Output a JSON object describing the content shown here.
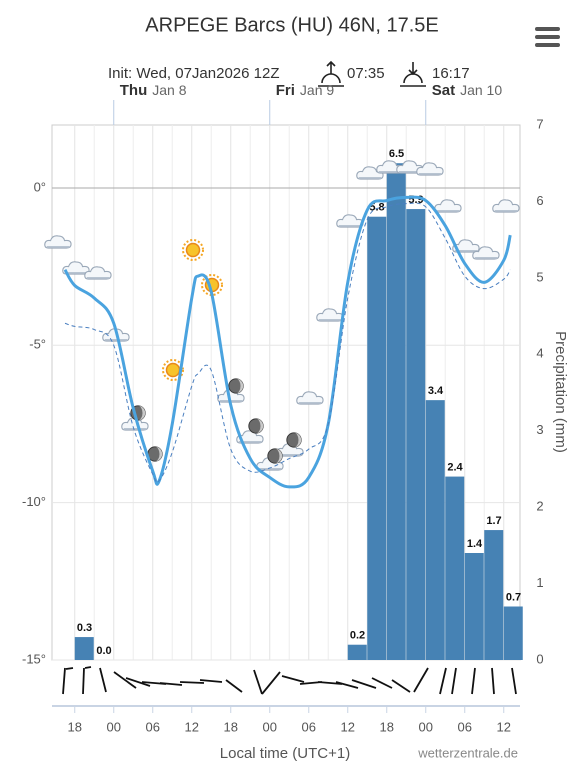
{
  "chart_data": {
    "type": "line",
    "title": "ARPEGE Barcs (HU) 46N, 17.5E",
    "init": "Init: Wed, 07Jan2026 12Z",
    "sunrise": "07:35",
    "sunset": "16:17",
    "days": [
      {
        "day": "Thu",
        "date": "Jan 8",
        "x": 0
      },
      {
        "day": "Fri",
        "date": "Jan 9",
        "x": 24
      },
      {
        "day": "Sat",
        "date": "Jan 10",
        "x": 48
      }
    ],
    "x_label": "Local time (UTC+1)",
    "y2_label": "Precipitation (mm)",
    "credit": "wetterzentrale.de",
    "xlim": [
      -9.5,
      62.5
    ],
    "xticks": [
      {
        "value": -6,
        "label": "18"
      },
      {
        "value": 0,
        "label": "00"
      },
      {
        "value": 6,
        "label": "06"
      },
      {
        "value": 12,
        "label": "12"
      },
      {
        "value": 18,
        "label": "18"
      },
      {
        "value": 24,
        "label": "00"
      },
      {
        "value": 30,
        "label": "06"
      },
      {
        "value": 36,
        "label": "12"
      },
      {
        "value": 42,
        "label": "18"
      },
      {
        "value": 48,
        "label": "00"
      },
      {
        "value": 54,
        "label": "06"
      },
      {
        "value": 60,
        "label": "12"
      }
    ],
    "ylim": [
      -15,
      2
    ],
    "yticks": [
      {
        "value": 0,
        "label": "0°"
      },
      {
        "value": -5,
        "label": "-5°"
      },
      {
        "value": -10,
        "label": "-10°"
      },
      {
        "value": -15,
        "label": "-15°"
      }
    ],
    "y2lim": [
      0,
      7
    ],
    "y2ticks": [
      0,
      1,
      2,
      3,
      4,
      5,
      6,
      7
    ],
    "grid": true,
    "series": [
      {
        "color": "#4aa3df",
        "dashed": false,
        "x": [
          -7.5,
          -6,
          -3,
          0,
          3,
          6,
          7,
          9,
          12,
          13,
          15,
          18,
          21,
          24,
          27,
          30,
          33,
          36,
          39,
          42,
          45,
          48,
          51,
          54,
          57,
          60,
          61
        ],
        "values": [
          -2.6,
          -3.1,
          -3.5,
          -4.3,
          -7.0,
          -9.0,
          -9.3,
          -7.5,
          -3.5,
          -2.8,
          -3.3,
          -6.9,
          -8.6,
          -9.2,
          -9.5,
          -9.2,
          -7.5,
          -3.0,
          -0.7,
          -0.4,
          -0.3,
          -0.4,
          -1.2,
          -2.4,
          -3.0,
          -2.3,
          -1.5
        ]
      },
      {
        "color": "#4a7fc0",
        "dashed": true,
        "x": [
          -7.5,
          -6,
          -3,
          0,
          3,
          6,
          7,
          9,
          12,
          13,
          15,
          18,
          21,
          24,
          27,
          30,
          33,
          36,
          39,
          42,
          45,
          48,
          51,
          54,
          57,
          60,
          61
        ],
        "values": [
          -4.3,
          -4.4,
          -4.5,
          -5.0,
          -7.6,
          -9.1,
          -9.3,
          -8.4,
          -6.3,
          -5.9,
          -5.8,
          -8.3,
          -9.0,
          -8.9,
          -8.6,
          -8.3,
          -7.5,
          -3.5,
          -1.0,
          -0.6,
          -0.5,
          -0.6,
          -1.6,
          -2.8,
          -3.2,
          -2.9,
          -2.6
        ]
      }
    ],
    "precipitation": {
      "color": "#4682b4",
      "axis": "y2",
      "x": [
        -6,
        -3,
        36,
        39,
        42,
        45,
        48,
        51,
        54,
        57,
        60
      ],
      "values": [
        0.3,
        0.0,
        0.2,
        5.8,
        6.5,
        5.9,
        3.4,
        2.4,
        1.4,
        1.7,
        0.7
      ],
      "value_labels": [
        "0.3",
        "0.0",
        "0.2",
        "5.8",
        "6.5",
        "5.9",
        "3.4",
        "2.4",
        "1.4",
        "1.7",
        "0.7"
      ]
    }
  }
}
